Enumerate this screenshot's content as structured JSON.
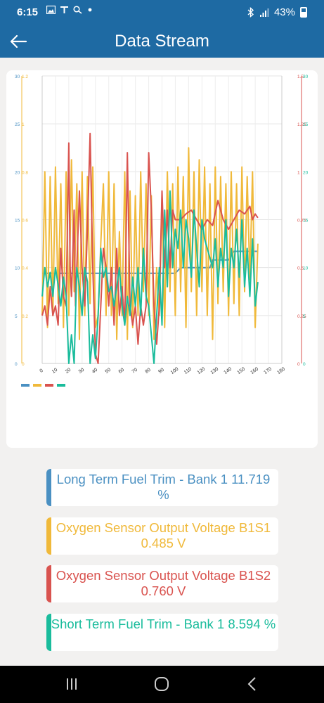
{
  "status_bar": {
    "time": "6:15",
    "battery": "43%",
    "icons_left": [
      "image-icon",
      "signal-t-icon",
      "search-icon",
      "dot-icon"
    ],
    "icons_right": [
      "bluetooth-icon",
      "cellular-signal-icon",
      "battery-icon"
    ]
  },
  "app_bar": {
    "title": "Data Stream",
    "back_icon": "arrow-left-icon"
  },
  "chart_data": {
    "type": "line",
    "x_ticks": [
      "0",
      "10",
      "20",
      "30",
      "40",
      "50",
      "60",
      "70",
      "80",
      "90",
      "100",
      "110",
      "120",
      "130",
      "140",
      "150",
      "160",
      "170",
      "180"
    ],
    "xlim": [
      0,
      180
    ],
    "axes": [
      {
        "side": "left",
        "color": "#4a90c2",
        "ticks": [
          "0",
          "5",
          "10",
          "15",
          "20",
          "25",
          "30"
        ],
        "range": [
          0,
          30
        ]
      },
      {
        "side": "left",
        "color": "#f0b93a",
        "ticks": [
          "0",
          "0.2",
          "0.4",
          "0.6",
          "0.8",
          "1",
          "1.2"
        ],
        "range": [
          0,
          1.2
        ]
      },
      {
        "side": "right",
        "color": "#d9534f",
        "ticks": [
          "0",
          "0.25",
          "0.5",
          "0.75",
          "1",
          "1.25",
          "1.5"
        ],
        "range": [
          0,
          1.5
        ]
      },
      {
        "side": "right",
        "color": "#1abc9c",
        "ticks": [
          "0",
          "5",
          "10",
          "15",
          "20",
          "25",
          "30"
        ],
        "range": [
          0,
          30
        ]
      }
    ],
    "grid": true,
    "legend": "bottom-left",
    "series": [
      {
        "color": "#4a90c2",
        "axis": 0,
        "points": [
          [
            0,
            9.4
          ],
          [
            5,
            9.4
          ],
          [
            10,
            9.4
          ],
          [
            20,
            9.4
          ],
          [
            30,
            9.4
          ],
          [
            40,
            9.4
          ],
          [
            50,
            9.4
          ],
          [
            60,
            9.4
          ],
          [
            70,
            9.4
          ],
          [
            80,
            9.4
          ],
          [
            90,
            9.4
          ],
          [
            100,
            9.4
          ],
          [
            104,
            10
          ],
          [
            115,
            10
          ],
          [
            126,
            10
          ],
          [
            128,
            10.8
          ],
          [
            140,
            10.8
          ],
          [
            144,
            11.7
          ],
          [
            162,
            11.7
          ]
        ]
      },
      {
        "color": "#f0b93a",
        "axis": 1,
        "points": [
          [
            0,
            0.2
          ],
          [
            2,
            0.8
          ],
          [
            4,
            0.15
          ],
          [
            6,
            0.78
          ],
          [
            8,
            0.2
          ],
          [
            10,
            0.82
          ],
          [
            12,
            0.25
          ],
          [
            14,
            0.75
          ],
          [
            16,
            0.15
          ],
          [
            18,
            0.8
          ],
          [
            20,
            0.2
          ],
          [
            22,
            0.85
          ],
          [
            24,
            0.3
          ],
          [
            26,
            0.75
          ],
          [
            28,
            0.1
          ],
          [
            30,
            0.8
          ],
          [
            32,
            0.2
          ],
          [
            34,
            0.78
          ],
          [
            36,
            0.25
          ],
          [
            38,
            0.82
          ],
          [
            40,
            0.15
          ],
          [
            42,
            0.2
          ],
          [
            44,
            0.5
          ],
          [
            46,
            0.75
          ],
          [
            48,
            0.2
          ],
          [
            50,
            0.8
          ],
          [
            52,
            0.2
          ],
          [
            54,
            0.75
          ],
          [
            56,
            0.1
          ],
          [
            58,
            0.55
          ],
          [
            60,
            0.2
          ],
          [
            62,
            0.8
          ],
          [
            64,
            0.1
          ],
          [
            66,
            0.72
          ],
          [
            68,
            0.15
          ],
          [
            70,
            0.7
          ],
          [
            72,
            0.2
          ],
          [
            74,
            0.8
          ],
          [
            76,
            0.3
          ],
          [
            78,
            0.75
          ],
          [
            80,
            0.2
          ],
          [
            82,
            0.7
          ],
          [
            84,
            0.1
          ],
          [
            86,
            0.4
          ],
          [
            88,
            0.2
          ],
          [
            90,
            0.7
          ],
          [
            92,
            0.15
          ],
          [
            94,
            0.8
          ],
          [
            96,
            0.3
          ],
          [
            98,
            0.75
          ],
          [
            100,
            0.2
          ],
          [
            102,
            0.82
          ],
          [
            104,
            0.3
          ],
          [
            106,
            0.78
          ],
          [
            108,
            0.15
          ],
          [
            110,
            0.9
          ],
          [
            112,
            0.3
          ],
          [
            114,
            0.8
          ],
          [
            116,
            0.2
          ],
          [
            118,
            0.85
          ],
          [
            120,
            0.3
          ],
          [
            122,
            0.82
          ],
          [
            124,
            0.2
          ],
          [
            126,
            0.75
          ],
          [
            128,
            0.1
          ],
          [
            130,
            0.82
          ],
          [
            132,
            0.25
          ],
          [
            134,
            0.78
          ],
          [
            136,
            0.3
          ],
          [
            138,
            0.75
          ],
          [
            140,
            0.2
          ],
          [
            142,
            0.8
          ],
          [
            144,
            0.25
          ],
          [
            146,
            0.75
          ],
          [
            148,
            0.2
          ],
          [
            150,
            0.82
          ],
          [
            152,
            0.3
          ],
          [
            154,
            0.78
          ],
          [
            156,
            0.35
          ],
          [
            158,
            0.8
          ],
          [
            160,
            0.15
          ],
          [
            162,
            0.5
          ]
        ]
      },
      {
        "color": "#d9534f",
        "axis": 2,
        "points": [
          [
            0,
            0.25
          ],
          [
            2,
            0.3
          ],
          [
            4,
            0.2
          ],
          [
            6,
            0.4
          ],
          [
            8,
            0.25
          ],
          [
            10,
            0.3
          ],
          [
            12,
            0.2
          ],
          [
            14,
            0.6
          ],
          [
            16,
            0.35
          ],
          [
            18,
            0.3
          ],
          [
            20,
            1.15
          ],
          [
            21,
            0.5
          ],
          [
            22,
            0.35
          ],
          [
            24,
            0.8
          ],
          [
            25,
            0.3
          ],
          [
            28,
            0.9
          ],
          [
            30,
            0.5
          ],
          [
            32,
            0.3
          ],
          [
            34,
            0.7
          ],
          [
            36,
            1.2
          ],
          [
            38,
            0.5
          ],
          [
            40,
            0.05
          ],
          [
            42,
            0.0
          ],
          [
            44,
            0.3
          ],
          [
            46,
            0.6
          ],
          [
            48,
            0.5
          ],
          [
            50,
            0.3
          ],
          [
            52,
            0.5
          ],
          [
            54,
            0.2
          ],
          [
            56,
            0.6
          ],
          [
            58,
            0.25
          ],
          [
            60,
            0.4
          ],
          [
            62,
            0.2
          ],
          [
            64,
            1.1
          ],
          [
            66,
            0.3
          ],
          [
            68,
            0.2
          ],
          [
            70,
            0.3
          ],
          [
            72,
            0.1
          ],
          [
            74,
            0.3
          ],
          [
            76,
            0.2
          ],
          [
            78,
            0.3
          ],
          [
            80,
            1.1
          ],
          [
            82,
            0.8
          ],
          [
            84,
            0.3
          ],
          [
            86,
            0.1
          ],
          [
            88,
            0.3
          ],
          [
            90,
            0.9
          ],
          [
            92,
            0.5
          ],
          [
            94,
            0.8
          ],
          [
            96,
            0.5
          ],
          [
            98,
            0.8
          ],
          [
            100,
            0.75
          ],
          [
            104,
            0.75
          ],
          [
            108,
            0.78
          ],
          [
            112,
            0.8
          ],
          [
            116,
            0.75
          ],
          [
            120,
            0.7
          ],
          [
            124,
            0.75
          ],
          [
            128,
            0.72
          ],
          [
            132,
            0.85
          ],
          [
            136,
            0.75
          ],
          [
            140,
            0.7
          ],
          [
            144,
            0.75
          ],
          [
            148,
            0.8
          ],
          [
            152,
            0.78
          ],
          [
            156,
            0.82
          ],
          [
            158,
            0.75
          ],
          [
            160,
            0.78
          ],
          [
            162,
            0.76
          ]
        ]
      },
      {
        "color": "#1abc9c",
        "axis": 3,
        "points": [
          [
            0,
            7
          ],
          [
            2,
            10
          ],
          [
            4,
            8
          ],
          [
            6,
            9.5
          ],
          [
            8,
            7
          ],
          [
            10,
            10
          ],
          [
            12,
            8.2
          ],
          [
            14,
            6
          ],
          [
            16,
            9
          ],
          [
            18,
            7
          ],
          [
            20,
            0
          ],
          [
            22,
            3
          ],
          [
            24,
            0
          ],
          [
            26,
            10
          ],
          [
            28,
            8
          ],
          [
            30,
            5
          ],
          [
            32,
            10
          ],
          [
            34,
            8.5
          ],
          [
            36,
            0
          ],
          [
            38,
            3
          ],
          [
            40,
            0.5
          ],
          [
            42,
            5
          ],
          [
            44,
            12
          ],
          [
            46,
            9
          ],
          [
            48,
            10
          ],
          [
            50,
            7.5
          ],
          [
            52,
            8
          ],
          [
            54,
            6
          ],
          [
            56,
            8
          ],
          [
            58,
            10
          ],
          [
            60,
            6
          ],
          [
            62,
            4
          ],
          [
            64,
            7
          ],
          [
            66,
            5
          ],
          [
            68,
            9
          ],
          [
            70,
            6
          ],
          [
            72,
            10
          ],
          [
            74,
            5
          ],
          [
            76,
            12
          ],
          [
            78,
            7
          ],
          [
            80,
            6
          ],
          [
            82,
            3
          ],
          [
            84,
            0
          ],
          [
            86,
            5
          ],
          [
            88,
            10
          ],
          [
            90,
            4
          ],
          [
            92,
            16
          ],
          [
            94,
            8
          ],
          [
            96,
            18
          ],
          [
            98,
            10
          ],
          [
            100,
            14
          ],
          [
            102,
            12
          ],
          [
            104,
            16
          ],
          [
            106,
            10
          ],
          [
            108,
            15
          ],
          [
            110,
            13
          ],
          [
            112,
            9
          ],
          [
            114,
            16
          ],
          [
            116,
            12
          ],
          [
            118,
            8
          ],
          [
            120,
            15
          ],
          [
            122,
            13
          ],
          [
            124,
            12
          ],
          [
            126,
            11
          ],
          [
            128,
            10
          ],
          [
            130,
            13
          ],
          [
            132,
            8
          ],
          [
            134,
            12
          ],
          [
            136,
            10
          ],
          [
            138,
            15
          ],
          [
            140,
            7
          ],
          [
            142,
            12
          ],
          [
            144,
            10
          ],
          [
            146,
            14
          ],
          [
            148,
            9
          ],
          [
            150,
            15
          ],
          [
            152,
            8
          ],
          [
            154,
            12
          ],
          [
            156,
            7
          ],
          [
            158,
            13
          ],
          [
            160,
            6
          ],
          [
            162,
            8.5
          ]
        ]
      }
    ]
  },
  "sensors": [
    {
      "label": "Long Term Fuel Trim - Bank 1 11.719 %",
      "color": "#4a90c2"
    },
    {
      "label": "Oxygen Sensor Output Voltage B1S1 0.485 V",
      "color": "#f0b93a"
    },
    {
      "label": "Oxygen Sensor Output Voltage B1S2 0.760 V",
      "color": "#d9534f"
    },
    {
      "label": "Short Term Fuel Trim - Bank 1 8.594 %",
      "color": "#1abc9c"
    }
  ],
  "nav_bar": {
    "recents_icon": "recents-icon",
    "home_icon": "home-icon",
    "back_icon": "back-chevron-icon"
  }
}
